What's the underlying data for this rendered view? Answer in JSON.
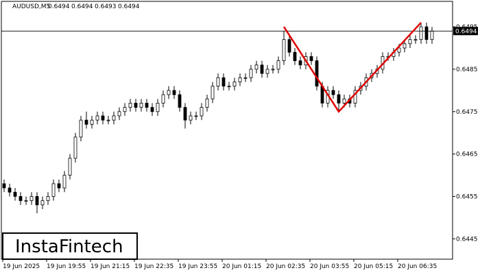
{
  "chart_data": {
    "type": "candlestick",
    "symbol": "AUDUSD,M5",
    "header_ohlc": [
      0.6494,
      0.6494,
      0.6493,
      0.6494
    ],
    "current_price": 0.6494,
    "logo": "InstaFintech",
    "ylim": [
      0.64402,
      0.6501
    ],
    "yticks": [
      0.6445,
      0.6455,
      0.6465,
      0.6475,
      0.6485,
      0.6495
    ],
    "categories": [
      "19 Jun 2025",
      null,
      null,
      null,
      null,
      null,
      null,
      null,
      "19 Jun 19:55",
      null,
      null,
      null,
      null,
      null,
      null,
      null,
      "19 Jun 21:15",
      null,
      null,
      null,
      null,
      null,
      null,
      null,
      "19 Jun 22:35",
      null,
      null,
      null,
      null,
      null,
      null,
      null,
      "19 Jun 23:55",
      null,
      null,
      null,
      null,
      null,
      null,
      null,
      "20 Jun 01:15",
      null,
      null,
      null,
      null,
      null,
      null,
      null,
      "20 Jun 02:35",
      null,
      null,
      null,
      null,
      null,
      null,
      null,
      "20 Jun 03:55",
      null,
      null,
      null,
      null,
      null,
      null,
      null,
      "20 Jun 05:15",
      null,
      null,
      null,
      null,
      null,
      null,
      null,
      "20 Jun 06:35",
      null,
      null,
      null,
      null,
      null,
      null
    ],
    "open": [
      0.6458,
      0.6457,
      0.6456,
      0.6455,
      0.6454,
      0.6454,
      0.6455,
      0.6453,
      0.6454,
      0.6455,
      0.6458,
      0.6457,
      0.646,
      0.6464,
      0.6469,
      0.6473,
      0.6472,
      0.6473,
      0.6474,
      0.6473,
      0.6473,
      0.6474,
      0.6475,
      0.6476,
      0.6477,
      0.6476,
      0.6477,
      0.6476,
      0.6475,
      0.6477,
      0.6479,
      0.648,
      0.6479,
      0.6476,
      0.6473,
      0.6474,
      0.6474,
      0.6476,
      0.6478,
      0.6481,
      0.6483,
      0.6481,
      0.6481,
      0.6482,
      0.6483,
      0.6483,
      0.6485,
      0.6486,
      0.6484,
      0.6485,
      0.6485,
      0.6487,
      0.6492,
      0.6489,
      0.6487,
      0.6486,
      0.6488,
      0.6487,
      0.6481,
      0.6477,
      0.648,
      0.6479,
      0.6477,
      0.6478,
      0.6477,
      0.648,
      0.6481,
      0.6483,
      0.6484,
      0.6485,
      0.6488,
      0.6488,
      0.6489,
      0.649,
      0.6491,
      0.6492,
      0.6492,
      0.6495,
      0.6492
    ],
    "high": [
      0.6459,
      0.6458,
      0.6457,
      0.6456,
      0.6455,
      0.6456,
      0.6456,
      0.6455,
      0.6456,
      0.6459,
      0.6459,
      0.6461,
      0.6465,
      0.647,
      0.6474,
      0.6475,
      0.6474,
      0.6475,
      0.6475,
      0.6474,
      0.6475,
      0.6476,
      0.6477,
      0.6478,
      0.6478,
      0.6478,
      0.6478,
      0.6477,
      0.6478,
      0.648,
      0.6481,
      0.6481,
      0.648,
      0.6477,
      0.6475,
      0.6475,
      0.6477,
      0.6479,
      0.6482,
      0.6484,
      0.6484,
      0.6482,
      0.6483,
      0.6484,
      0.6484,
      0.6486,
      0.6487,
      0.6487,
      0.6486,
      0.6486,
      0.6488,
      0.6494,
      0.6493,
      0.649,
      0.6488,
      0.6489,
      0.6489,
      0.6488,
      0.6482,
      0.6481,
      0.6481,
      0.648,
      0.6479,
      0.6479,
      0.6481,
      0.6482,
      0.6484,
      0.6485,
      0.6486,
      0.6489,
      0.6489,
      0.649,
      0.6491,
      0.6492,
      0.6493,
      0.6493,
      0.6496,
      0.6496,
      0.6495
    ],
    "low": [
      0.6456,
      0.6455,
      0.6454,
      0.6453,
      0.6453,
      0.6453,
      0.6451,
      0.6452,
      0.6453,
      0.6454,
      0.6456,
      0.6456,
      0.6459,
      0.6463,
      0.6468,
      0.6471,
      0.6471,
      0.6472,
      0.6472,
      0.6472,
      0.6472,
      0.6473,
      0.6474,
      0.6475,
      0.6475,
      0.6475,
      0.6475,
      0.6474,
      0.6474,
      0.6476,
      0.6478,
      0.6478,
      0.6475,
      0.6471,
      0.6472,
      0.6473,
      0.6473,
      0.6475,
      0.6477,
      0.648,
      0.648,
      0.648,
      0.648,
      0.6481,
      0.6482,
      0.6482,
      0.6484,
      0.6483,
      0.6483,
      0.6484,
      0.6484,
      0.6486,
      0.6488,
      0.6486,
      0.6485,
      0.6485,
      0.6486,
      0.648,
      0.6476,
      0.6476,
      0.6478,
      0.6475,
      0.6476,
      0.6476,
      0.6476,
      0.6479,
      0.648,
      0.6482,
      0.6483,
      0.6484,
      0.6487,
      0.6487,
      0.6488,
      0.6489,
      0.649,
      0.6491,
      0.6491,
      0.6491,
      0.6491
    ],
    "close": [
      0.6457,
      0.6456,
      0.6455,
      0.6454,
      0.6454,
      0.6455,
      0.6453,
      0.6454,
      0.6455,
      0.6458,
      0.6457,
      0.646,
      0.6464,
      0.6469,
      0.6473,
      0.6472,
      0.6473,
      0.6474,
      0.6473,
      0.6473,
      0.6474,
      0.6475,
      0.6476,
      0.6477,
      0.6476,
      0.6477,
      0.6476,
      0.6475,
      0.6477,
      0.6479,
      0.648,
      0.6479,
      0.6476,
      0.6473,
      0.6474,
      0.6474,
      0.6476,
      0.6478,
      0.6481,
      0.6483,
      0.6481,
      0.6481,
      0.6482,
      0.6483,
      0.6483,
      0.6485,
      0.6486,
      0.6484,
      0.6485,
      0.6485,
      0.6487,
      0.6492,
      0.6489,
      0.6487,
      0.6486,
      0.6488,
      0.6487,
      0.6481,
      0.6477,
      0.648,
      0.6479,
      0.6477,
      0.6478,
      0.6477,
      0.648,
      0.6481,
      0.6483,
      0.6484,
      0.6485,
      0.6488,
      0.6488,
      0.6489,
      0.649,
      0.6491,
      0.6492,
      0.6492,
      0.6495,
      0.6492,
      0.6494
    ],
    "pattern": {
      "color": "#e00000",
      "x": [
        51,
        61,
        76
      ],
      "values": [
        0.6495,
        0.6475,
        0.6496
      ]
    }
  }
}
